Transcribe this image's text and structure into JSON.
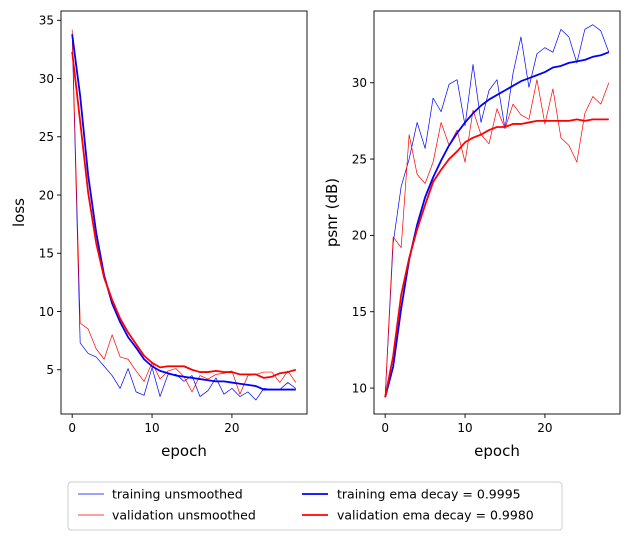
{
  "chart_data": [
    {
      "type": "line",
      "xlabel": "epoch",
      "ylabel": "loss",
      "xlim": [
        -1.4,
        29.4
      ],
      "ylim": [
        1.2,
        35.8
      ],
      "xticks": [
        0,
        10,
        20
      ],
      "yticks": [
        5,
        10,
        15,
        20,
        25,
        30,
        35
      ],
      "x": [
        0,
        1,
        2,
        3,
        4,
        5,
        6,
        7,
        8,
        9,
        10,
        11,
        12,
        13,
        14,
        15,
        16,
        17,
        18,
        19,
        20,
        21,
        22,
        23,
        24,
        25,
        26,
        27,
        28
      ],
      "series": [
        {
          "key": "training_unsmoothed",
          "color": "#0000ff",
          "style": "thin",
          "values": [
            33.8,
            7.3,
            6.4,
            6.1,
            5.3,
            4.5,
            3.4,
            5.1,
            3.1,
            2.8,
            5.2,
            2.7,
            4.6,
            4.6,
            4.0,
            4.5,
            2.7,
            3.2,
            4.3,
            2.9,
            3.4,
            2.7,
            3.1,
            2.4,
            3.4,
            3.3,
            3.3,
            3.9,
            3.4
          ]
        },
        {
          "key": "validation_unsmoothed",
          "color": "#ff0000",
          "style": "thin",
          "values": [
            34.2,
            9.0,
            8.5,
            6.8,
            5.9,
            8.0,
            6.1,
            5.9,
            4.9,
            4.0,
            5.6,
            4.2,
            4.9,
            5.1,
            4.4,
            3.1,
            4.5,
            4.2,
            4.6,
            4.7,
            4.9,
            2.9,
            4.5,
            4.6,
            4.8,
            4.8,
            3.9,
            4.9,
            3.9
          ]
        },
        {
          "key": "training_ema",
          "color": "#0000ff",
          "style": "thick",
          "values": [
            33.8,
            28.5,
            21.7,
            16.8,
            13.1,
            10.7,
            9.1,
            7.8,
            6.9,
            5.9,
            5.3,
            4.9,
            4.7,
            4.5,
            4.4,
            4.3,
            4.2,
            4.1,
            4.0,
            4.0,
            3.9,
            3.8,
            3.7,
            3.6,
            3.3,
            3.3,
            3.3,
            3.3,
            3.3
          ]
        },
        {
          "key": "validation_ema",
          "color": "#ff0000",
          "style": "thick",
          "values": [
            32.3,
            26.3,
            20.2,
            15.9,
            12.9,
            11.0,
            9.4,
            8.2,
            7.2,
            6.2,
            5.6,
            5.2,
            5.3,
            5.3,
            5.3,
            5.0,
            4.8,
            4.8,
            4.9,
            4.8,
            4.8,
            4.6,
            4.6,
            4.6,
            4.3,
            4.4,
            4.7,
            4.8,
            5.0
          ]
        }
      ]
    },
    {
      "type": "line",
      "xlabel": "epoch",
      "ylabel": "psnr (dB)",
      "xlim": [
        -1.4,
        29.4
      ],
      "ylim": [
        8.3,
        34.7
      ],
      "xticks": [
        0,
        10,
        20
      ],
      "yticks": [
        10,
        15,
        20,
        25,
        30
      ],
      "x": [
        0,
        1,
        2,
        3,
        4,
        5,
        6,
        7,
        8,
        9,
        10,
        11,
        12,
        13,
        14,
        15,
        16,
        17,
        18,
        19,
        20,
        21,
        22,
        23,
        24,
        25,
        26,
        27,
        28
      ],
      "series": [
        {
          "key": "training_unsmoothed",
          "color": "#0000ff",
          "style": "thin",
          "values": [
            9.4,
            19.5,
            23.2,
            25.0,
            27.4,
            25.7,
            29.0,
            28.1,
            29.9,
            30.2,
            27.2,
            31.2,
            27.4,
            29.5,
            30.2,
            27.0,
            30.6,
            33.0,
            29.7,
            31.9,
            32.3,
            32.0,
            33.5,
            33.0,
            31.3,
            33.5,
            33.8,
            33.4,
            32.0
          ]
        },
        {
          "key": "validation_unsmoothed",
          "color": "#ff0000",
          "style": "thin",
          "values": [
            9.5,
            19.9,
            19.2,
            26.6,
            24.0,
            23.4,
            24.8,
            27.4,
            25.9,
            26.9,
            24.8,
            28.2,
            26.6,
            26.0,
            28.3,
            27.0,
            28.6,
            27.9,
            27.6,
            30.2,
            27.3,
            29.6,
            26.4,
            25.9,
            24.8,
            28.0,
            29.1,
            28.6,
            30.0
          ]
        },
        {
          "key": "training_ema",
          "color": "#0000ff",
          "style": "thick",
          "values": [
            9.4,
            11.4,
            15.2,
            18.4,
            20.7,
            22.5,
            23.8,
            24.9,
            25.9,
            26.7,
            27.4,
            28.0,
            28.5,
            28.9,
            29.2,
            29.5,
            29.8,
            30.1,
            30.3,
            30.5,
            30.7,
            31.0,
            31.1,
            31.3,
            31.4,
            31.5,
            31.7,
            31.8,
            32.0
          ]
        },
        {
          "key": "validation_ema",
          "color": "#ff0000",
          "style": "thick",
          "values": [
            9.4,
            12.1,
            16.1,
            18.5,
            20.4,
            22.0,
            23.5,
            24.3,
            25.0,
            25.5,
            26.1,
            26.4,
            26.6,
            26.9,
            27.1,
            27.1,
            27.3,
            27.3,
            27.4,
            27.5,
            27.5,
            27.5,
            27.5,
            27.5,
            27.6,
            27.5,
            27.6,
            27.6,
            27.6
          ]
        }
      ]
    }
  ],
  "legend": {
    "placement": "bottom-center",
    "entries": [
      {
        "label": "training unsmoothed",
        "color": "#0000ff",
        "style": "thin"
      },
      {
        "label": "validation unsmoothed",
        "color": "#ff0000",
        "style": "thin"
      },
      {
        "label": "training ema decay = 0.9995",
        "color": "#0000ff",
        "style": "thick"
      },
      {
        "label": "validation ema decay = 0.9980",
        "color": "#ff0000",
        "style": "thick"
      }
    ]
  }
}
